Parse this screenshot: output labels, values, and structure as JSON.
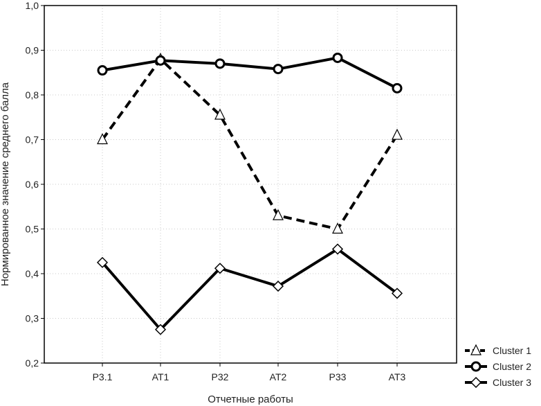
{
  "chart_data": {
    "type": "line",
    "categories": [
      "P3.1",
      "AT1",
      "P32",
      "AT2",
      "P33",
      "AT3"
    ],
    "xlabel": "Отчетные работы",
    "ylabel": "Нормированное значение среднего балла",
    "ylim": [
      0.2,
      1.0
    ],
    "yticks": [
      "0,2",
      "0,3",
      "0,4",
      "0,5",
      "0,6",
      "0,7",
      "0,8",
      "0,9",
      "1,0"
    ],
    "grid": true,
    "legend_position": "bottom-right",
    "series": [
      {
        "name": "Cluster 1",
        "values": [
          0.7,
          0.88,
          0.755,
          0.53,
          0.5,
          0.71
        ],
        "marker": "triangle",
        "line": "dashed",
        "color": "#000000"
      },
      {
        "name": "Cluster 2",
        "values": [
          0.855,
          0.877,
          0.87,
          0.858,
          0.883,
          0.815
        ],
        "marker": "circle",
        "line": "solid",
        "color": "#000000"
      },
      {
        "name": "Cluster 3",
        "values": [
          0.425,
          0.275,
          0.412,
          0.372,
          0.455,
          0.356
        ],
        "marker": "diamond",
        "line": "solid",
        "color": "#000000"
      }
    ]
  }
}
